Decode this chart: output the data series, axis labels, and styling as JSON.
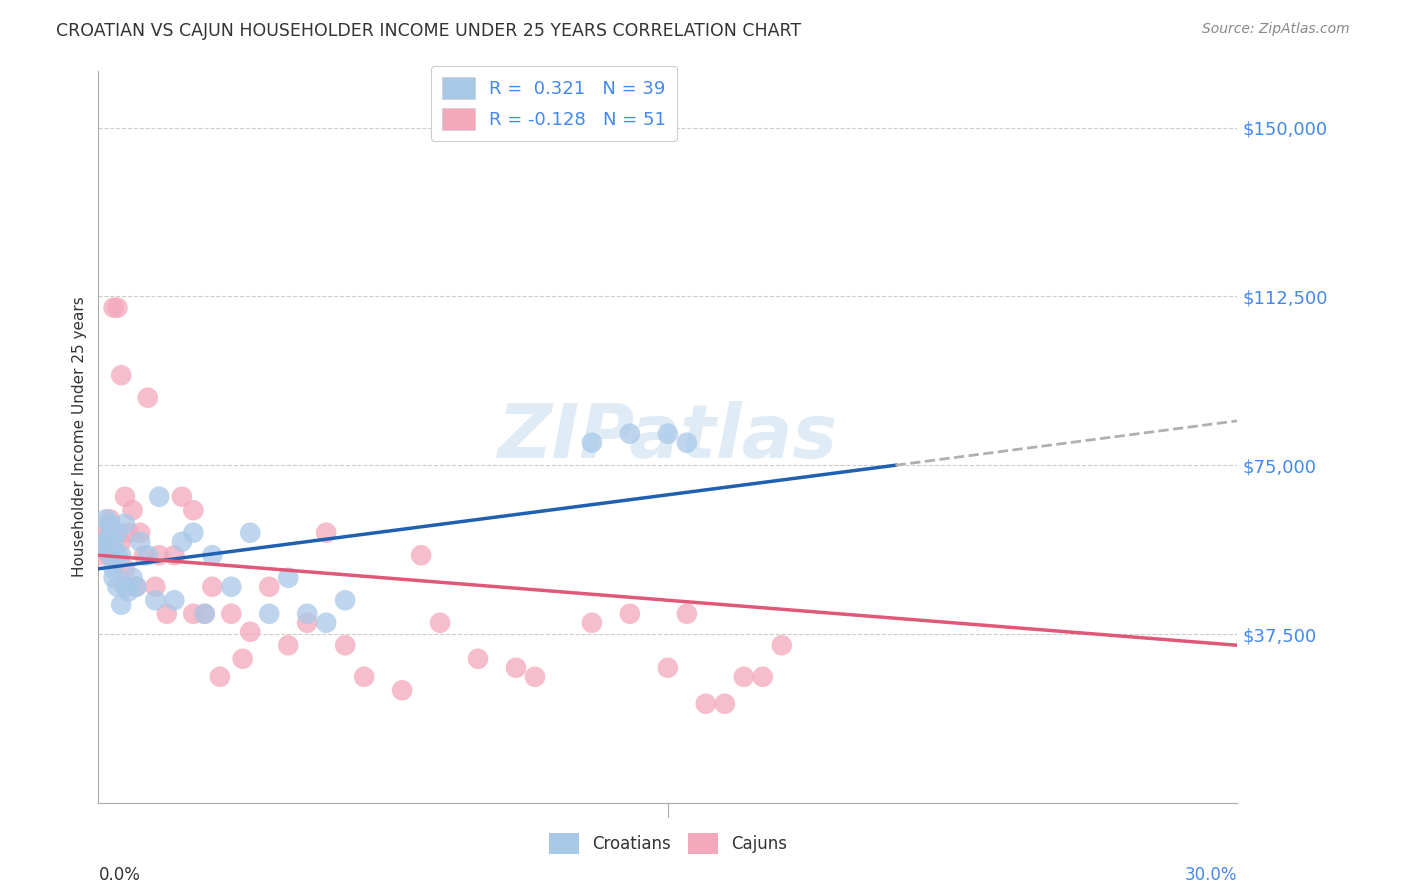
{
  "title": "CROATIAN VS CAJUN HOUSEHOLDER INCOME UNDER 25 YEARS CORRELATION CHART",
  "source": "Source: ZipAtlas.com",
  "ylabel": "Householder Income Under 25 years",
  "xmin": 0.0,
  "xmax": 0.3,
  "ymin": 0,
  "ymax": 162500,
  "yticks": [
    0,
    37500,
    75000,
    112500,
    150000
  ],
  "ytick_labels": [
    "",
    "$37,500",
    "$75,000",
    "$112,500",
    "$150,000"
  ],
  "croatian_color": "#a8c8e8",
  "cajun_color": "#f4a8bc",
  "trend_croatian_color": "#2060b0",
  "trend_cajun_color": "#e05878",
  "trend_ext_color": "#b0b0b0",
  "background_color": "#ffffff",
  "grid_color": "#cccccc",
  "watermark": "ZIPatlas",
  "cr_line_x0": 0.0,
  "cr_line_y0": 52000,
  "cr_line_x1": 0.21,
  "cr_line_y1": 75000,
  "cj_line_x0": 0.0,
  "cj_line_y0": 55000,
  "cj_line_x1": 0.3,
  "cj_line_y1": 35000,
  "croatian_x": [
    0.001,
    0.002,
    0.002,
    0.003,
    0.003,
    0.003,
    0.004,
    0.004,
    0.004,
    0.005,
    0.005,
    0.005,
    0.006,
    0.006,
    0.007,
    0.007,
    0.008,
    0.009,
    0.01,
    0.011,
    0.013,
    0.015,
    0.016,
    0.02,
    0.022,
    0.025,
    0.028,
    0.03,
    0.035,
    0.04,
    0.045,
    0.05,
    0.055,
    0.06,
    0.065,
    0.13,
    0.14,
    0.15,
    0.155
  ],
  "croatian_y": [
    57000,
    63000,
    58000,
    55000,
    60000,
    62000,
    52000,
    58000,
    50000,
    48000,
    55000,
    60000,
    44000,
    55000,
    48000,
    62000,
    47000,
    50000,
    48000,
    58000,
    55000,
    45000,
    68000,
    45000,
    58000,
    60000,
    42000,
    55000,
    48000,
    60000,
    42000,
    50000,
    42000,
    40000,
    45000,
    80000,
    82000,
    82000,
    80000
  ],
  "cajun_x": [
    0.001,
    0.002,
    0.003,
    0.003,
    0.004,
    0.005,
    0.005,
    0.006,
    0.006,
    0.007,
    0.007,
    0.008,
    0.009,
    0.01,
    0.011,
    0.012,
    0.013,
    0.015,
    0.016,
    0.018,
    0.02,
    0.022,
    0.025,
    0.025,
    0.028,
    0.03,
    0.032,
    0.035,
    0.038,
    0.04,
    0.045,
    0.05,
    0.055,
    0.06,
    0.065,
    0.07,
    0.08,
    0.085,
    0.09,
    0.1,
    0.11,
    0.115,
    0.13,
    0.14,
    0.15,
    0.155,
    0.16,
    0.165,
    0.17,
    0.175,
    0.18
  ],
  "cajun_y": [
    55000,
    60000,
    63000,
    55000,
    110000,
    110000,
    60000,
    58000,
    95000,
    68000,
    52000,
    60000,
    65000,
    48000,
    60000,
    55000,
    90000,
    48000,
    55000,
    42000,
    55000,
    68000,
    65000,
    42000,
    42000,
    48000,
    28000,
    42000,
    32000,
    38000,
    48000,
    35000,
    40000,
    60000,
    35000,
    28000,
    25000,
    55000,
    40000,
    32000,
    30000,
    28000,
    40000,
    42000,
    30000,
    42000,
    22000,
    22000,
    28000,
    28000,
    35000
  ]
}
